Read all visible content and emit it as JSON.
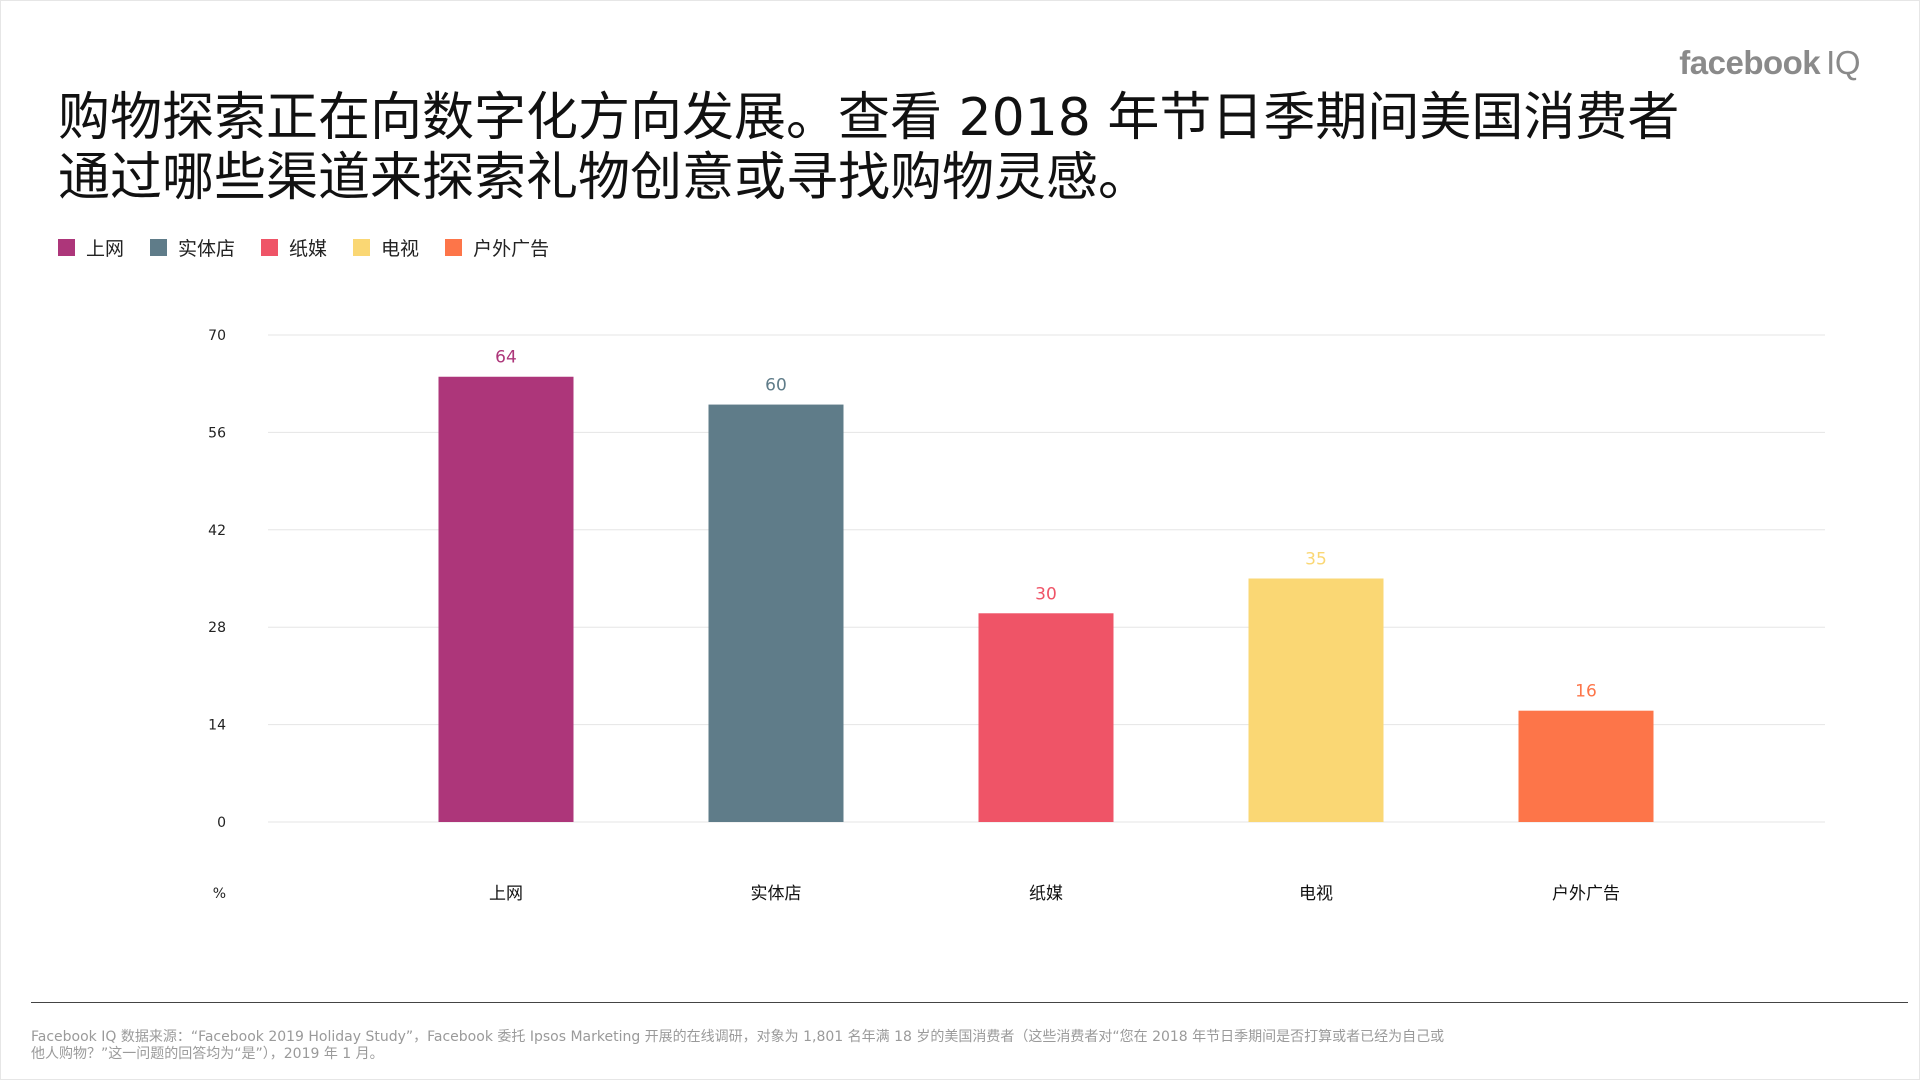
{
  "brand": {
    "name": "facebook",
    "suffix": "IQ"
  },
  "title": {
    "line1": "购物探索正在向数字化方向发展。查看 2018 年节日季期间美国消费者",
    "line2": "通过哪些渠道来探索礼物创意或寻找购物灵感。"
  },
  "legend": [
    {
      "label": "上网",
      "color": "#AD367A"
    },
    {
      "label": "实体店",
      "color": "#5F7C89"
    },
    {
      "label": "纸媒",
      "color": "#EF5467"
    },
    {
      "label": "电视",
      "color": "#FAD774"
    },
    {
      "label": "户外广告",
      "color": "#FD7549"
    }
  ],
  "chart_data": {
    "type": "bar",
    "categories": [
      "上网",
      "实体店",
      "纸媒",
      "电视",
      "户外广告"
    ],
    "values": [
      64,
      60,
      30,
      35,
      16
    ],
    "colors": [
      "#AD367A",
      "#5F7C89",
      "#EF5467",
      "#FAD774",
      "#FD7549"
    ],
    "yticks": [
      0,
      14,
      28,
      42,
      56,
      70
    ],
    "ylim": [
      0,
      70
    ],
    "ylabel": "%",
    "xlabel": "",
    "title": "",
    "grid": true,
    "data_labels": true
  },
  "footnote": "Facebook IQ 数据来源：“Facebook 2019 Holiday Study”，Facebook 委托 Ipsos Marketing 开展的在线调研，对象为 1,801 名年满 18 岁的美国消费者（这些消费者对“您在 2018 年节日季期间是否打算或者已经为自己或他人购物？”这一问题的回答均为“是”），2019 年 1 月。"
}
